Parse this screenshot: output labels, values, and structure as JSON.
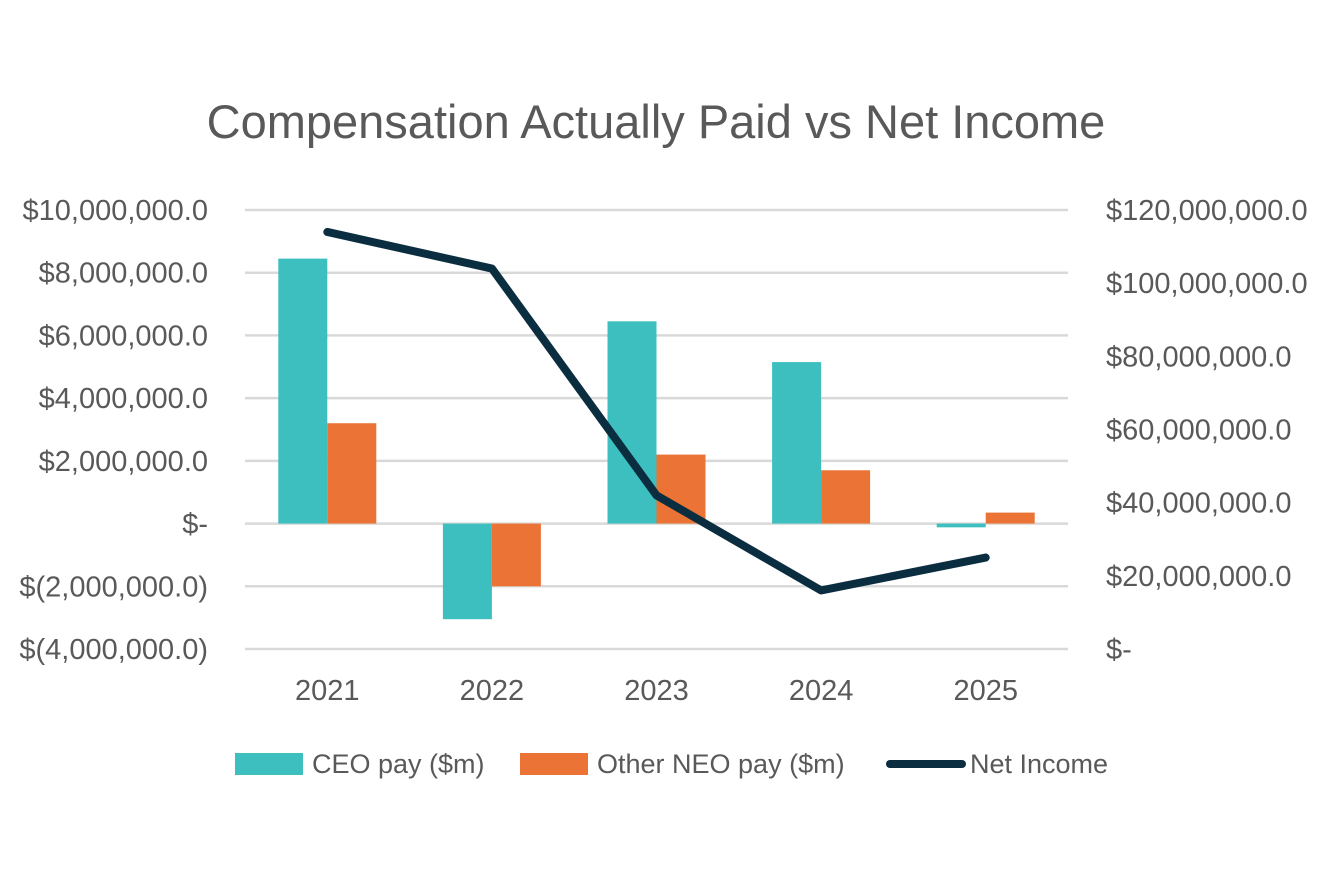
{
  "chart_data": {
    "type": "bar",
    "title": "Compensation Actually Paid vs Net Income",
    "categories": [
      "2021",
      "2022",
      "2023",
      "2024",
      "2025"
    ],
    "series": [
      {
        "name": "CEO pay ($m)",
        "type": "bar",
        "axis": "left",
        "color": "#3DBFBF",
        "values": [
          8450000,
          -3050000,
          6450000,
          5150000,
          -120000
        ]
      },
      {
        "name": "Other NEO pay ($m)",
        "type": "bar",
        "axis": "left",
        "color": "#EB7335",
        "values": [
          3200000,
          -2000000,
          2200000,
          1700000,
          350000
        ]
      },
      {
        "name": "Net Income",
        "type": "line",
        "axis": "right",
        "color": "#0B2D40",
        "values": [
          114000000,
          104000000,
          42000000,
          16000000,
          25000000
        ]
      }
    ],
    "y_left": {
      "ylim": [
        -4000000,
        10000000
      ],
      "ticks": [
        10000000,
        8000000,
        6000000,
        4000000,
        2000000,
        0,
        -2000000,
        -4000000
      ],
      "tick_labels": [
        "$10,000,000.0",
        "$8,000,000.0",
        "$6,000,000.0",
        "$4,000,000.0",
        "$2,000,000.0",
        "$-",
        "$(2,000,000.0)",
        "$(4,000,000.0)"
      ]
    },
    "y_right": {
      "ylim": [
        0,
        120000000
      ],
      "ticks": [
        120000000,
        100000000,
        80000000,
        60000000,
        40000000,
        20000000,
        0
      ],
      "tick_labels": [
        "$120,000,000.0",
        "$100,000,000.0",
        "$80,000,000.0",
        "$60,000,000.0",
        "$40,000,000.0",
        "$20,000,000.0",
        "$-"
      ]
    },
    "grid": true,
    "legend": {
      "position": "bottom",
      "entries": [
        "CEO pay ($m)",
        "Other NEO pay ($m)",
        "Net Income"
      ]
    }
  }
}
